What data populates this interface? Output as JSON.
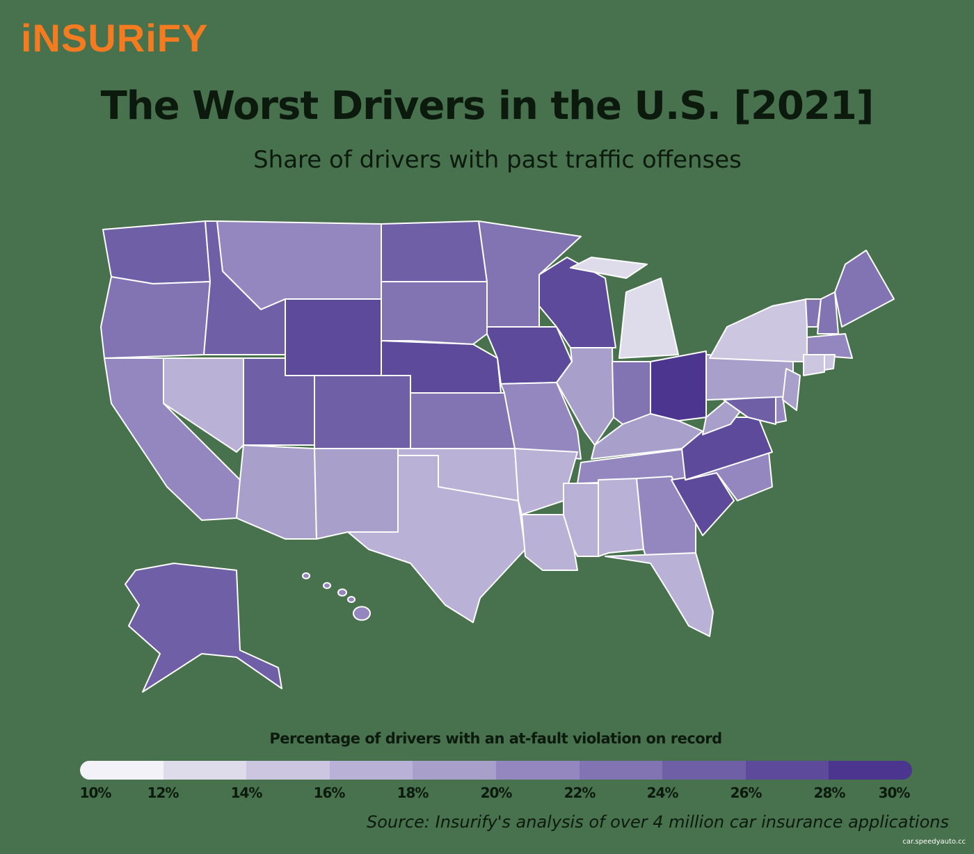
{
  "header": {
    "logo": "iNSURiFY",
    "title": "The Worst Drivers in the U.S. [2021]",
    "subtitle": "Share of drivers with past traffic offenses"
  },
  "legend": {
    "title": "Percentage of drivers with an at-fault violation on record",
    "ticks": [
      "10%",
      "12%",
      "14%",
      "16%",
      "18%",
      "20%",
      "22%",
      "24%",
      "26%",
      "28%",
      "30%"
    ],
    "bins": [
      10,
      12,
      14,
      16,
      18,
      20,
      22,
      24,
      26,
      28,
      30
    ],
    "colors": [
      "#f4f2f9",
      "#dedbeb",
      "#ccc6e1",
      "#bab2d6",
      "#a99fcb",
      "#9487c0",
      "#8274b3",
      "#6e5fa6",
      "#5d4a9a",
      "#4b358e"
    ]
  },
  "map_data": {
    "type": "choropleth",
    "unit": "percent",
    "region": "United States",
    "values": {
      "WA": 25,
      "OR": 23,
      "CA": 21,
      "ID": 25,
      "NV": 17,
      "MT": 21,
      "WY": 27,
      "UT": 25,
      "AZ": 19,
      "CO": 25,
      "NM": 19,
      "ND": 25,
      "SD": 23,
      "NE": 27,
      "KS": 23,
      "OK": 17,
      "TX": 17,
      "MN": 23,
      "IA": 27,
      "MO": 21,
      "AR": 17,
      "LA": 17,
      "WI": 27,
      "IL": 19,
      "MS": 17,
      "MI": 13,
      "IN": 23,
      "OH": 29,
      "KY": 19,
      "TN": 21,
      "AL": 17,
      "GA": 21,
      "FL": 17,
      "SC": 27,
      "NC": 21,
      "VA": 27,
      "WV": 19,
      "PA": 19,
      "NY": 15,
      "ME": 23,
      "VT": 23,
      "NH": 23,
      "MA": 21,
      "RI": 15,
      "CT": 15,
      "NJ": 19,
      "DE": 21,
      "MD": 25,
      "AK": 25,
      "HI": 21
    }
  },
  "footer": {
    "source": "Source: Insurify's analysis of over 4 million car insurance applications",
    "credit": "car.speedyauto.cc"
  }
}
